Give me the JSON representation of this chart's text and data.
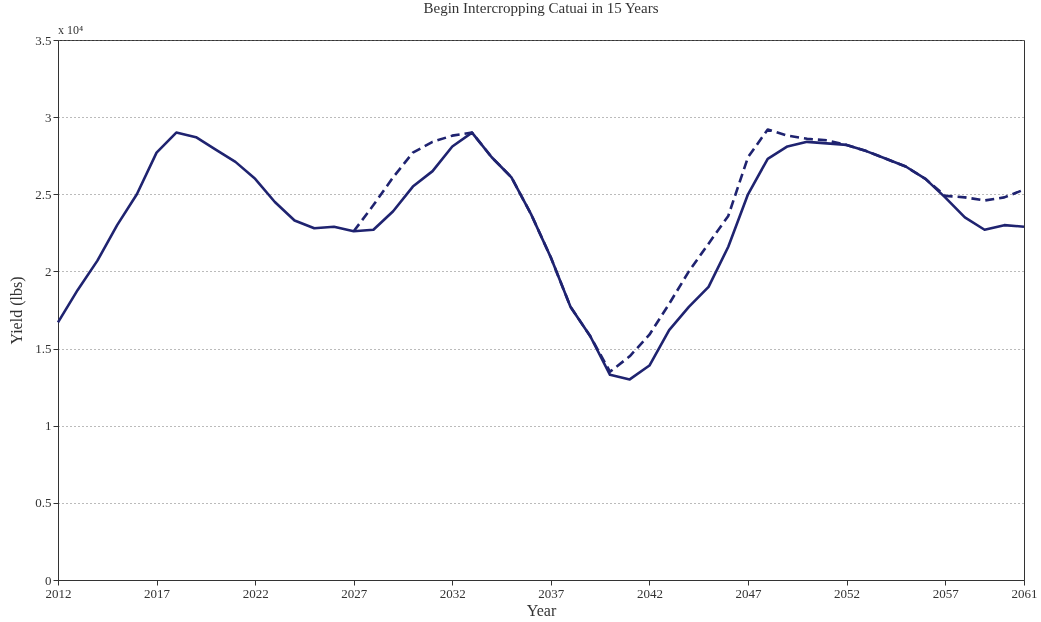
{
  "chart_data": {
    "type": "line",
    "title": "Begin Intercropping Catuai in 15 Years",
    "xlabel": "Year",
    "ylabel": "Yield (lbs)",
    "annotations": [
      "x 10⁴"
    ],
    "x": [
      2012,
      2013,
      2014,
      2015,
      2016,
      2017,
      2018,
      2019,
      2020,
      2021,
      2022,
      2023,
      2024,
      2025,
      2026,
      2027,
      2028,
      2029,
      2030,
      2031,
      2032,
      2033,
      2034,
      2035,
      2036,
      2037,
      2038,
      2039,
      2040,
      2041,
      2042,
      2043,
      2044,
      2045,
      2046,
      2047,
      2048,
      2049,
      2050,
      2051,
      2052,
      2053,
      2054,
      2055,
      2056,
      2057,
      2058,
      2059,
      2060,
      2061
    ],
    "series": [
      {
        "color": "#1f2370",
        "line_style": "solid",
        "values": [
          1.67,
          1.88,
          2.07,
          2.3,
          2.5,
          2.77,
          2.9,
          2.87,
          2.79,
          2.71,
          2.6,
          2.45,
          2.33,
          2.28,
          2.29,
          2.26,
          2.27,
          2.39,
          2.55,
          2.65,
          2.81,
          2.9,
          2.74,
          2.61,
          2.37,
          2.09,
          1.77,
          1.58,
          1.33,
          1.3,
          1.39,
          1.62,
          1.77,
          1.9,
          2.16,
          2.5,
          2.73,
          2.81,
          2.84,
          2.83,
          2.82,
          2.78,
          2.73,
          2.68,
          2.6,
          2.48,
          2.35,
          2.27,
          2.3,
          2.29
        ]
      },
      {
        "color": "#1f2370",
        "line_style": "dashed",
        "values": [
          null,
          null,
          null,
          null,
          null,
          null,
          null,
          null,
          null,
          null,
          null,
          null,
          null,
          null,
          null,
          2.26,
          2.43,
          2.61,
          2.77,
          2.84,
          2.88,
          2.9,
          2.74,
          2.61,
          2.37,
          2.09,
          1.77,
          1.58,
          1.35,
          1.45,
          1.59,
          1.79,
          2.0,
          2.18,
          2.36,
          2.74,
          2.92,
          2.88,
          2.86,
          2.85,
          2.82,
          2.78,
          2.73,
          2.68,
          2.6,
          2.49,
          2.48,
          2.46,
          2.48,
          2.53
        ]
      }
    ],
    "xlim": [
      2012,
      2061
    ],
    "xticks": [
      2012,
      2017,
      2022,
      2027,
      2032,
      2037,
      2042,
      2047,
      2052,
      2057,
      2061
    ],
    "ylim": [
      0,
      3.5
    ],
    "yticks": [
      0,
      0.5,
      1,
      1.5,
      2,
      2.5,
      3,
      3.5
    ],
    "grid": "y"
  }
}
